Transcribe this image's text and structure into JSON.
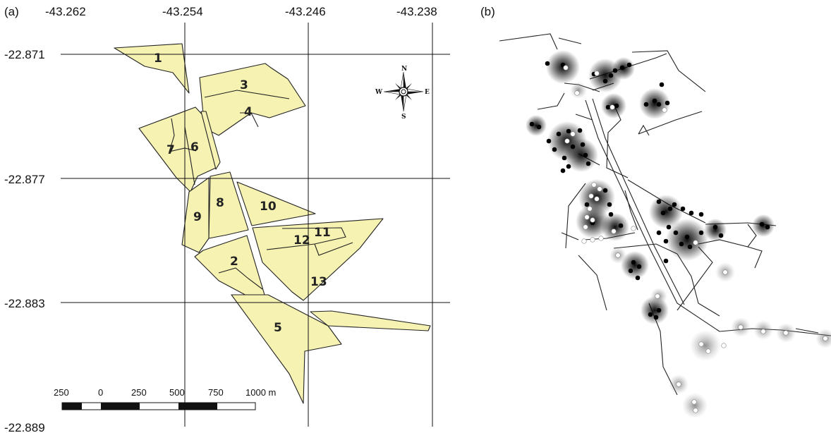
{
  "panels": {
    "a": "(a)",
    "b": "(b)"
  },
  "longitudes": [
    "-43.262",
    "-43.254",
    "-43.246",
    "-43.238"
  ],
  "latitudes": [
    "-22.871",
    "-22.877",
    "-22.883",
    "-22.889"
  ],
  "parcels": [
    "1",
    "3",
    "4",
    "6",
    "7",
    "8",
    "9",
    "10",
    "11",
    "12",
    "2",
    "13",
    "5"
  ],
  "compass": {
    "n": "N",
    "s": "S",
    "e": "E",
    "w": "W"
  },
  "scale_bar": {
    "ticks": [
      "250",
      "0",
      "250",
      "500",
      "750",
      "1000 m"
    ]
  },
  "colors": {
    "parcel_fill": "#f6f2b2",
    "grid": "#111111",
    "point_black": "#000000",
    "point_white": "#ffffff"
  },
  "legend_icons": [
    "compass-rose-icon",
    "scale-bar-icon"
  ]
}
